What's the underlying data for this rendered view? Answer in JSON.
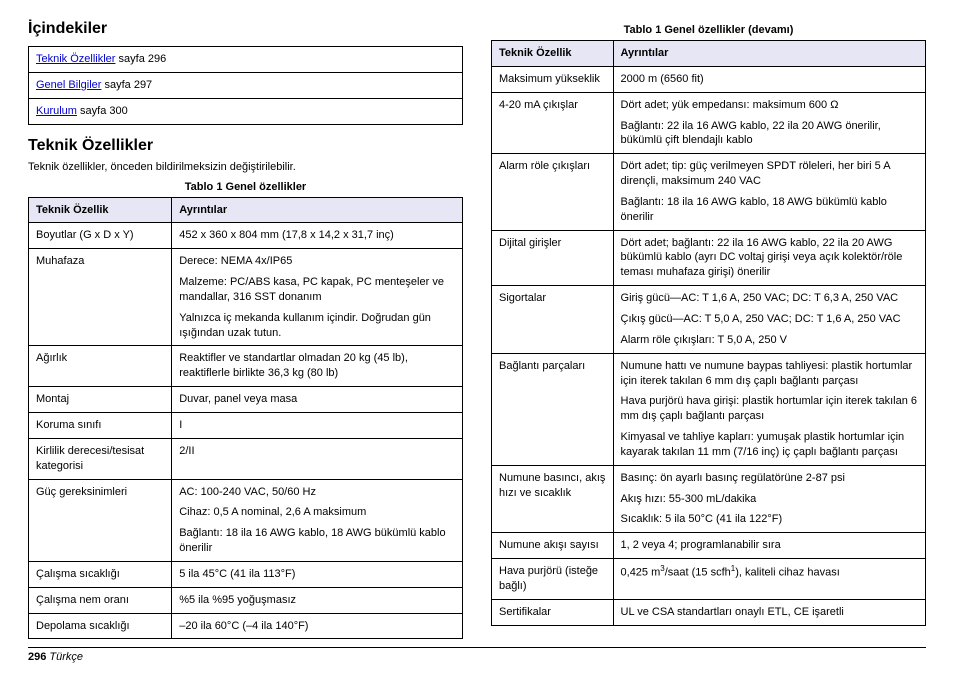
{
  "toc": {
    "title": "İçindekiler",
    "items": [
      {
        "link": "Teknik Özellikler",
        "rest": " sayfa 296"
      },
      {
        "link": "Genel Bilgiler",
        "rest": " sayfa 297"
      },
      {
        "link": "Kurulum",
        "rest": " sayfa 300"
      }
    ]
  },
  "section": {
    "title": "Teknik Özellikler",
    "intro": "Teknik özellikler, önceden bildirilmeksizin değiştirilebilir."
  },
  "table1": {
    "caption": "Tablo 1  Genel özellikler",
    "headers": [
      "Teknik Özellik",
      "Ayrıntılar"
    ],
    "rows": [
      {
        "spec": "Boyutlar (G x D x Y)",
        "detail": [
          "452 x 360 x 804 mm (17,8 x 14,2 x 31,7 inç)"
        ]
      },
      {
        "spec": "Muhafaza",
        "detail": [
          "Derece: NEMA 4x/IP65",
          "Malzeme: PC/ABS kasa, PC kapak, PC menteşeler ve mandallar, 316 SST donanım",
          "Yalnızca iç mekanda kullanım içindir. Doğrudan gün ışığından uzak tutun."
        ]
      },
      {
        "spec": "Ağırlık",
        "detail": [
          "Reaktifler ve standartlar olmadan 20 kg (45 lb), reaktiflerle birlikte 36,3 kg (80 lb)"
        ]
      },
      {
        "spec": "Montaj",
        "detail": [
          "Duvar, panel veya masa"
        ]
      },
      {
        "spec": "Koruma sınıfı",
        "detail": [
          "I"
        ]
      },
      {
        "spec": "Kirlilik derecesi/tesisat kategorisi",
        "detail": [
          "2/II"
        ]
      },
      {
        "spec": "Güç gereksinimleri",
        "detail": [
          "AC: 100-240 VAC, 50/60 Hz",
          "Cihaz: 0,5 A nominal, 2,6 A maksimum",
          "Bağlantı: 18 ila 16 AWG kablo, 18 AWG bükümlü kablo önerilir"
        ]
      },
      {
        "spec": "Çalışma sıcaklığı",
        "detail": [
          "5 ila 45°C (41 ila 113°F)"
        ]
      },
      {
        "spec": "Çalışma nem oranı",
        "detail": [
          "%5 ila %95 yoğuşmasız"
        ]
      },
      {
        "spec": "Depolama sıcaklığı",
        "detail": [
          "–20 ila 60°C (–4 ila 140°F)"
        ]
      }
    ]
  },
  "table2": {
    "caption": "Tablo 1  Genel özellikler (devamı)",
    "headers": [
      "Teknik Özellik",
      "Ayrıntılar"
    ],
    "rows": [
      {
        "spec": "Maksimum yükseklik",
        "detail": [
          "2000 m (6560 fit)"
        ]
      },
      {
        "spec": "4-20 mA çıkışlar",
        "detail": [
          "Dört adet; yük empedansı: maksimum 600 Ω",
          "Bağlantı: 22 ila 16 AWG kablo, 22 ila 20 AWG önerilir, bükümlü çift blendajlı kablo"
        ]
      },
      {
        "spec": "Alarm röle çıkışları",
        "detail": [
          "Dört adet; tip: güç verilmeyen SPDT röleleri, her biri 5 A dirençli, maksimum 240 VAC",
          "Bağlantı: 18 ila 16 AWG kablo, 18 AWG bükümlü kablo önerilir"
        ]
      },
      {
        "spec": "Dijital girişler",
        "detail": [
          "Dört adet; bağlantı: 22 ila 16 AWG kablo, 22 ila 20 AWG bükümlü kablo (ayrı DC voltaj girişi veya açık kolektör/röle teması muhafaza girişi) önerilir"
        ]
      },
      {
        "spec": "Sigortalar",
        "detail": [
          "Giriş gücü—AC: T 1,6 A, 250 VAC; DC: T 6,3 A, 250 VAC",
          "Çıkış gücü—AC: T 5,0 A, 250 VAC; DC: T 1,6 A, 250 VAC",
          "Alarm röle çıkışları: T 5,0 A, 250 V"
        ]
      },
      {
        "spec": "Bağlantı parçaları",
        "detail": [
          "Numune hattı ve numune baypas tahliyesi: plastik hortumlar için iterek takılan 6 mm dış çaplı bağlantı parçası",
          "Hava purjörü hava girişi: plastik hortumlar için iterek takılan 6 mm dış çaplı bağlantı parçası",
          "Kimyasal ve tahliye kapları: yumuşak plastik hortumlar için kayarak takılan 11 mm (7/16 inç) iç çaplı bağlantı parçası"
        ]
      },
      {
        "spec": "Numune basıncı, akış hızı ve sıcaklık",
        "detail": [
          "Basınç: ön ayarlı basınç regülatörüne 2-87 psi",
          "Akış hızı: 55-300 mL/dakika",
          "Sıcaklık: 5 ila 50°C (41 ila 122°F)"
        ]
      },
      {
        "spec": "Numune akışı sayısı",
        "detail": [
          "1, 2 veya 4; programlanabilir sıra"
        ]
      },
      {
        "spec": "Hava purjörü (isteğe bağlı)",
        "detail": [
          "0,425 m³/saat (15 scfh¹), kaliteli cihaz havası"
        ],
        "hasSup": true
      },
      {
        "spec": "Sertifikalar",
        "detail": [
          "UL ve CSA standartları onaylı ETL, CE işaretli"
        ]
      }
    ]
  },
  "footer": {
    "page": "296",
    "lang": "Türkçe"
  }
}
